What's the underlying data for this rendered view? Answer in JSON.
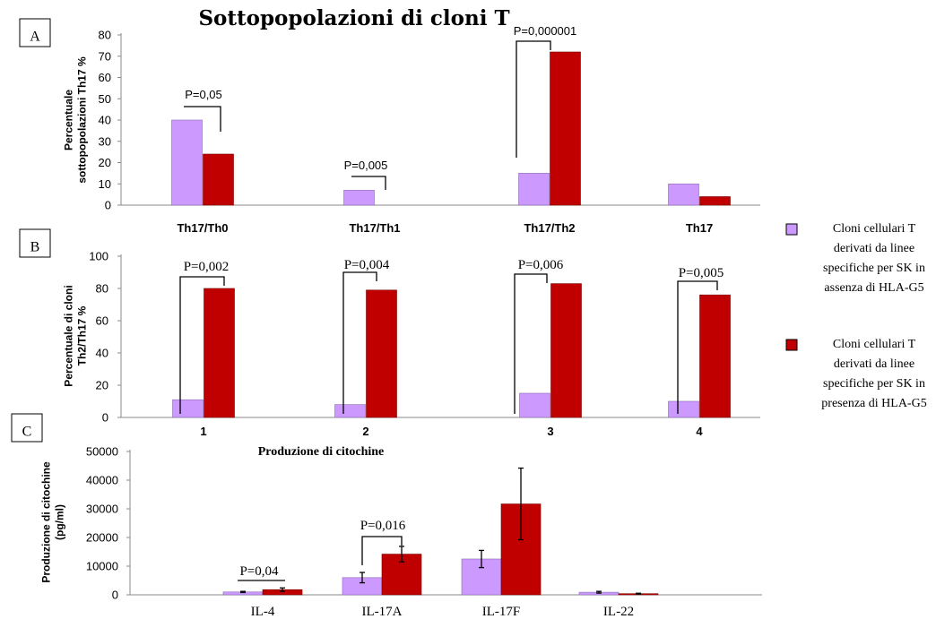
{
  "title": "Sottopopolazioni di cloni T",
  "colors": {
    "series1": "#cc99ff",
    "series2": "#c00000"
  },
  "legend": [
    {
      "lines": [
        "Cloni cellulari T",
        "derivati da linee",
        "specifiche per SK in",
        "assenza di HLA-G5"
      ],
      "color": "#cc99ff"
    },
    {
      "lines": [
        "Cloni cellulari T",
        "derivati da linee",
        "specifiche per SK in",
        "presenza di HLA-G5"
      ],
      "color": "#c00000"
    }
  ],
  "chart_data": [
    {
      "panel": "A",
      "type": "bar",
      "categories": [
        "Th17/Th0",
        "Th17/Th1",
        "Th17/Th2",
        "Th17"
      ],
      "series": [
        {
          "values": [
            40,
            7,
            15,
            10
          ]
        },
        {
          "values": [
            24,
            0,
            72,
            4
          ]
        }
      ],
      "ylabel": [
        "Percentuale",
        "sottopopolazioni  Th17 %"
      ],
      "ylim": [
        0,
        80
      ],
      "yticks": [
        0,
        10,
        20,
        30,
        40,
        50,
        60,
        70,
        80
      ],
      "pvalues": [
        "P=0,05",
        "P=0,005",
        "P=0,000001",
        null
      ]
    },
    {
      "panel": "B",
      "type": "bar",
      "categories": [
        "1",
        "2",
        "3",
        "4"
      ],
      "series": [
        {
          "values": [
            11,
            8,
            15,
            10
          ]
        },
        {
          "values": [
            80,
            79,
            83,
            76
          ]
        }
      ],
      "ylabel": [
        "Percentuale di cloni",
        "Th2/Th17  %"
      ],
      "ylim": [
        0,
        100
      ],
      "yticks": [
        0,
        20,
        40,
        60,
        80,
        100
      ],
      "pvalues": [
        "P=0,002",
        "P=0,004",
        "P=0,006",
        "P=0,005"
      ]
    },
    {
      "panel": "C",
      "type": "bar",
      "subtitle": "Produzione di citochine",
      "categories": [
        "IL-4",
        "IL-17A",
        "IL-17F",
        "IL-22"
      ],
      "series": [
        {
          "values": [
            1000,
            6000,
            12500,
            900
          ],
          "errors": [
            200,
            1800,
            3000,
            300
          ]
        },
        {
          "values": [
            1800,
            14200,
            31700,
            400
          ],
          "errors": [
            600,
            2700,
            12500,
            150
          ]
        }
      ],
      "ylabel": [
        "Produzione di citochine",
        "(pg/ml)"
      ],
      "ylim": [
        0,
        50000
      ],
      "yticks": [
        0,
        10000,
        20000,
        30000,
        40000,
        50000
      ],
      "pvalues": [
        "P=0,04",
        "P=0,016",
        null,
        null
      ]
    }
  ]
}
